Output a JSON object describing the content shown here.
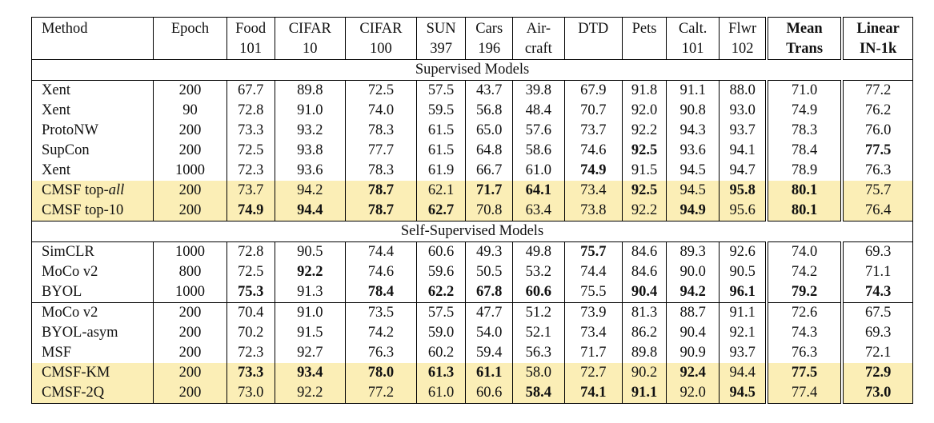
{
  "columns": [
    {
      "l1": "Method",
      "l2": ""
    },
    {
      "l1": "Epoch",
      "l2": ""
    },
    {
      "l1": "Food",
      "l2": "101"
    },
    {
      "l1": "CIFAR",
      "l2": "10"
    },
    {
      "l1": "CIFAR",
      "l2": "100"
    },
    {
      "l1": "SUN",
      "l2": "397"
    },
    {
      "l1": "Cars",
      "l2": "196"
    },
    {
      "l1": "Air-",
      "l2": "craft"
    },
    {
      "l1": "DTD",
      "l2": ""
    },
    {
      "l1": "Pets",
      "l2": ""
    },
    {
      "l1": "Calt.",
      "l2": "101"
    },
    {
      "l1": "Flwr",
      "l2": "102"
    },
    {
      "l1": "Mean",
      "l2": "Trans"
    },
    {
      "l1": "Linear",
      "l2": "IN-1k"
    }
  ],
  "sections": [
    {
      "title": "Supervised Models",
      "groups": [
        [
          {
            "method": "Xent",
            "epoch": "200",
            "values": [
              "67.7",
              "89.8",
              "72.5",
              "57.5",
              "43.7",
              "39.8",
              "67.9",
              "91.8",
              "91.1",
              "88.0",
              "71.0",
              "77.2"
            ],
            "bold": [],
            "hl": false
          },
          {
            "method": "Xent",
            "epoch": "90",
            "values": [
              "72.8",
              "91.0",
              "74.0",
              "59.5",
              "56.8",
              "48.4",
              "70.7",
              "92.0",
              "90.8",
              "93.0",
              "74.9",
              "76.2"
            ],
            "bold": [],
            "hl": false
          },
          {
            "method": "ProtoNW",
            "epoch": "200",
            "values": [
              "73.3",
              "93.2",
              "78.3",
              "61.5",
              "65.0",
              "57.6",
              "73.7",
              "92.2",
              "94.3",
              "93.7",
              "78.3",
              "76.0"
            ],
            "bold": [],
            "hl": false
          },
          {
            "method": "SupCon",
            "epoch": "200",
            "values": [
              "72.5",
              "93.8",
              "77.7",
              "61.5",
              "64.8",
              "58.6",
              "74.6",
              "92.5",
              "93.6",
              "94.1",
              "78.4",
              "77.5"
            ],
            "bold": [
              7,
              11
            ],
            "hl": false
          },
          {
            "method": "Xent",
            "epoch": "1000",
            "values": [
              "72.3",
              "93.6",
              "78.3",
              "61.9",
              "66.7",
              "61.0",
              "74.9",
              "91.5",
              "94.5",
              "94.7",
              "78.9",
              "76.3"
            ],
            "bold": [
              6
            ],
            "hl": false
          },
          {
            "method": "CMSF top-",
            "method_it": "all",
            "epoch": "200",
            "values": [
              "73.7",
              "94.2",
              "78.7",
              "62.1",
              "71.7",
              "64.1",
              "73.4",
              "92.5",
              "94.5",
              "95.8",
              "80.1",
              "75.7"
            ],
            "bold": [
              2,
              4,
              5,
              7,
              9,
              10
            ],
            "hl": true
          },
          {
            "method": "CMSF top-10",
            "epoch": "200",
            "values": [
              "74.9",
              "94.4",
              "78.7",
              "62.7",
              "70.8",
              "63.4",
              "73.8",
              "92.2",
              "94.9",
              "95.6",
              "80.1",
              "76.4"
            ],
            "bold": [
              0,
              1,
              2,
              3,
              8,
              10
            ],
            "hl": true
          }
        ]
      ]
    },
    {
      "title": "Self-Supervised Models",
      "groups": [
        [
          {
            "method": "SimCLR",
            "epoch": "1000",
            "values": [
              "72.8",
              "90.5",
              "74.4",
              "60.6",
              "49.3",
              "49.8",
              "75.7",
              "84.6",
              "89.3",
              "92.6",
              "74.0",
              "69.3"
            ],
            "bold": [
              6
            ],
            "hl": false
          },
          {
            "method": "MoCo v2",
            "epoch": "800",
            "values": [
              "72.5",
              "92.2",
              "74.6",
              "59.6",
              "50.5",
              "53.2",
              "74.4",
              "84.6",
              "90.0",
              "90.5",
              "74.2",
              "71.1"
            ],
            "bold": [
              1
            ],
            "hl": false
          },
          {
            "method": "BYOL",
            "epoch": "1000",
            "values": [
              "75.3",
              "91.3",
              "78.4",
              "62.2",
              "67.8",
              "60.6",
              "75.5",
              "90.4",
              "94.2",
              "96.1",
              "79.2",
              "74.3"
            ],
            "bold": [
              0,
              2,
              3,
              4,
              5,
              7,
              8,
              9,
              10,
              11
            ],
            "hl": false
          }
        ],
        [
          {
            "method": "MoCo v2",
            "epoch": "200",
            "values": [
              "70.4",
              "91.0",
              "73.5",
              "57.5",
              "47.7",
              "51.2",
              "73.9",
              "81.3",
              "88.7",
              "91.1",
              "72.6",
              "67.5"
            ],
            "bold": [],
            "hl": false
          },
          {
            "method": "BYOL-asym",
            "epoch": "200",
            "values": [
              "70.2",
              "91.5",
              "74.2",
              "59.0",
              "54.0",
              "52.1",
              "73.4",
              "86.2",
              "90.4",
              "92.1",
              "74.3",
              "69.3"
            ],
            "bold": [],
            "hl": false
          },
          {
            "method": "MSF",
            "epoch": "200",
            "values": [
              "72.3",
              "92.7",
              "76.3",
              "60.2",
              "59.4",
              "56.3",
              "71.7",
              "89.8",
              "90.9",
              "93.7",
              "76.3",
              "72.1"
            ],
            "bold": [],
            "hl": false
          },
          {
            "method": "CMSF-KM",
            "epoch": "200",
            "values": [
              "73.3",
              "93.4",
              "78.0",
              "61.3",
              "61.1",
              "58.0",
              "72.7",
              "90.2",
              "92.4",
              "94.4",
              "77.5",
              "72.9"
            ],
            "bold": [
              0,
              1,
              2,
              3,
              4,
              8,
              10,
              11
            ],
            "hl": true
          },
          {
            "method": "CMSF-2Q",
            "epoch": "200",
            "values": [
              "73.0",
              "92.2",
              "77.2",
              "61.0",
              "60.6",
              "58.4",
              "74.1",
              "91.1",
              "92.0",
              "94.5",
              "77.4",
              "73.0"
            ],
            "bold": [
              5,
              6,
              7,
              9,
              11
            ],
            "hl": true
          }
        ]
      ]
    }
  ]
}
